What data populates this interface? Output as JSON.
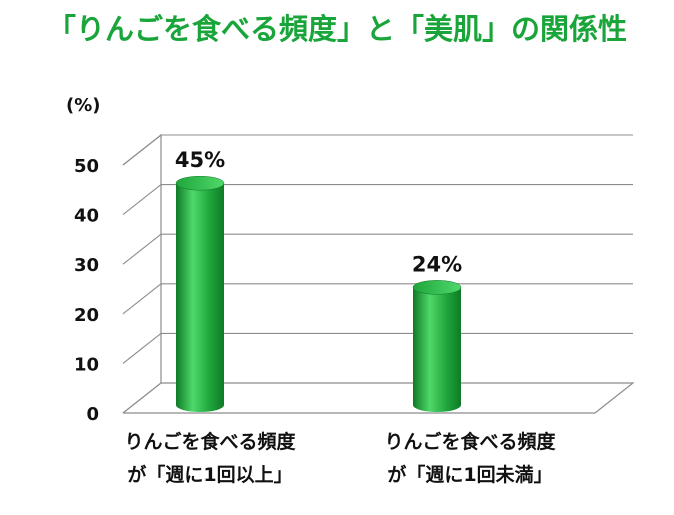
{
  "title": "「りんごを食べる頻度」と「美肌」の関係性",
  "colors": {
    "title": "#1aa53a",
    "bar_main": "#1fa63c",
    "bar_dark": "#0f7a26",
    "bar_light": "#4fd86a",
    "grid": "#8c8c8c",
    "text": "#111111"
  },
  "chart_data": {
    "type": "bar",
    "style": "3d-cylinder",
    "unit_label": "(%)",
    "categories": [
      [
        "りんごを食べる頻度",
        "が「週に1回以上」"
      ],
      [
        "りんごを食べる頻度",
        "が「週に1回未満」"
      ]
    ],
    "values": [
      45,
      24
    ],
    "data_labels": [
      "45%",
      "24%"
    ],
    "ylim": [
      0,
      50
    ],
    "yticks": [
      "0",
      "10",
      "20",
      "30",
      "40",
      "50"
    ],
    "grid": true,
    "legend": "none"
  }
}
